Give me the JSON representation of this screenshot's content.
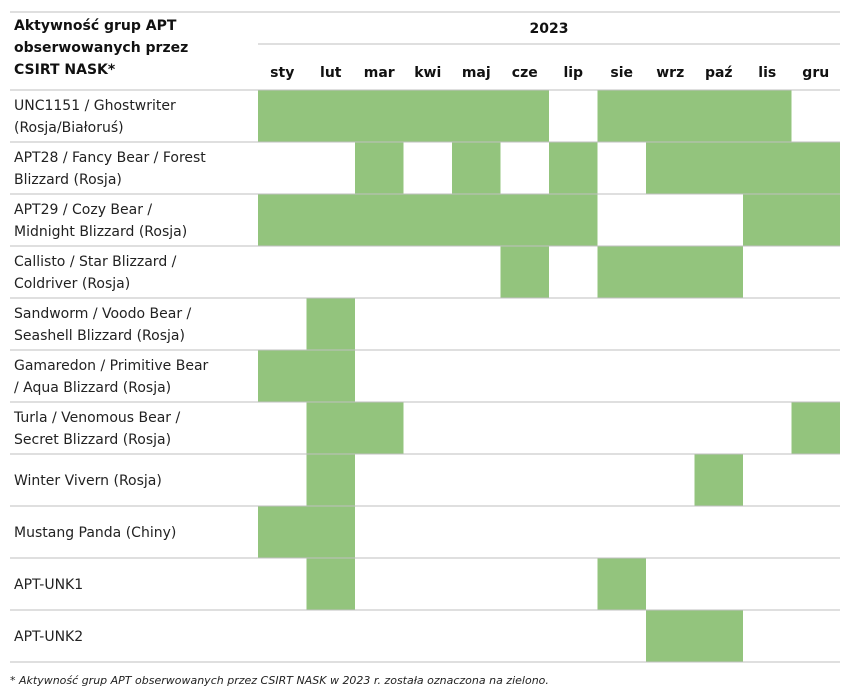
{
  "chart_data": {
    "type": "heatmap",
    "corner_header": [
      "Aktywność grup APT",
      "obserwowanych przez",
      "CSIRT NASK*"
    ],
    "year": "2023",
    "months": [
      "sty",
      "lut",
      "mar",
      "kwi",
      "maj",
      "cze",
      "lip",
      "sie",
      "wrz",
      "paź",
      "lis",
      "gru"
    ],
    "rows": [
      {
        "label": [
          "UNC1151 / Ghostwriter",
          "(Rosja/Białoruś)"
        ],
        "active": [
          1,
          1,
          1,
          1,
          1,
          1,
          0,
          1,
          1,
          1,
          1,
          0
        ]
      },
      {
        "label": [
          "APT28 / Fancy Bear / Forest",
          "Blizzard (Rosja)"
        ],
        "active": [
          0,
          0,
          1,
          0,
          1,
          0,
          1,
          0,
          1,
          1,
          1,
          1
        ]
      },
      {
        "label": [
          "APT29 / Cozy Bear /",
          "Midnight Blizzard (Rosja)"
        ],
        "active": [
          1,
          1,
          1,
          1,
          1,
          1,
          1,
          0,
          0,
          0,
          1,
          1
        ]
      },
      {
        "label": [
          "Callisto / Star Blizzard /",
          "Coldriver (Rosja)"
        ],
        "active": [
          0,
          0,
          0,
          0,
          0,
          1,
          0,
          1,
          1,
          1,
          0,
          0
        ]
      },
      {
        "label": [
          "Sandworm / Voodo Bear /",
          "Seashell Blizzard (Rosja)"
        ],
        "active": [
          0,
          1,
          0,
          0,
          0,
          0,
          0,
          0,
          0,
          0,
          0,
          0
        ]
      },
      {
        "label": [
          "Gamaredon / Primitive Bear",
          "/ Aqua Blizzard (Rosja)"
        ],
        "active": [
          1,
          1,
          0,
          0,
          0,
          0,
          0,
          0,
          0,
          0,
          0,
          0
        ]
      },
      {
        "label": [
          "Turla / Venomous Bear /",
          "Secret Blizzard (Rosja)"
        ],
        "active": [
          0,
          1,
          1,
          0,
          0,
          0,
          0,
          0,
          0,
          0,
          0,
          1
        ]
      },
      {
        "label": [
          "Winter Vivern (Rosja)"
        ],
        "active": [
          0,
          1,
          0,
          0,
          0,
          0,
          0,
          0,
          0,
          1,
          0,
          0
        ]
      },
      {
        "label": [
          "Mustang Panda (Chiny)"
        ],
        "active": [
          1,
          1,
          0,
          0,
          0,
          0,
          0,
          0,
          0,
          0,
          0,
          0
        ]
      },
      {
        "label": [
          "APT-UNK1"
        ],
        "active": [
          0,
          1,
          0,
          0,
          0,
          0,
          0,
          1,
          0,
          0,
          0,
          0
        ]
      },
      {
        "label": [
          "APT-UNK2"
        ],
        "active": [
          0,
          0,
          0,
          0,
          0,
          0,
          0,
          0,
          1,
          1,
          0,
          0
        ]
      }
    ],
    "active_color": "#93c47d",
    "grid_line_color": "#bfbfbf",
    "footnote": "* Aktywność grup APT obserwowanych przez CSIRT NASK w 2023 r. została oznaczona na zielono."
  }
}
